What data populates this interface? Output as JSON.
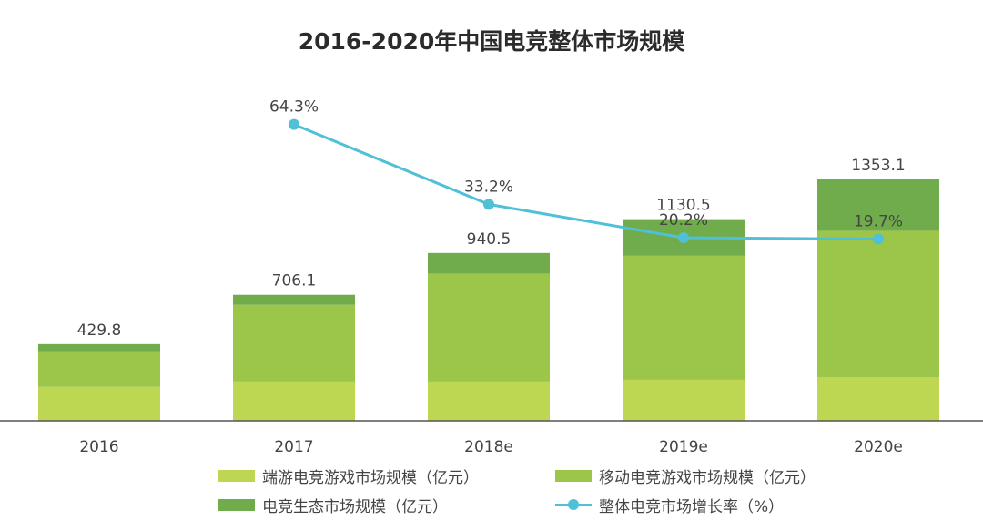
{
  "chart_data": {
    "type": "bar",
    "title": "2016-2020年中国电竞整体市场规模",
    "categories": [
      "2016",
      "2017",
      "2018e",
      "2019e",
      "2020e"
    ],
    "series": [
      {
        "name": "端游电竞游戏市场规模（亿元）",
        "kind": "stacked-bar",
        "color": "#bed752",
        "values": [
          190,
          220,
          220,
          230,
          245
        ]
      },
      {
        "name": "移动电竞游戏市场规模（亿元）",
        "kind": "stacked-bar",
        "color": "#9cc64a",
        "values": [
          199,
          430,
          605,
          695,
          820
        ]
      },
      {
        "name": "电竞生态市场规模（亿元）",
        "kind": "stacked-bar",
        "color": "#70ac4b",
        "values": [
          40.8,
          56.1,
          115.5,
          205.5,
          288.1
        ]
      },
      {
        "name": "整体电竞市场增长率（%）",
        "kind": "line",
        "color": "#4fc0d8",
        "values": [
          null,
          64.3,
          33.2,
          20.2,
          19.7
        ]
      }
    ],
    "totals": [
      429.8,
      706.1,
      940.5,
      1130.5,
      1353.1
    ],
    "total_labels": [
      "429.8",
      "706.1",
      "940.5",
      "1130.5",
      "1353.1"
    ],
    "growth_labels": [
      "",
      "64.3%",
      "33.2%",
      "20.2%",
      "19.7%"
    ],
    "xlabel": "",
    "ylabel": "",
    "ylim": [
      0,
      1440
    ],
    "growth_ylim": [
      0,
      100
    ],
    "grid": false,
    "legend_position": "bottom"
  }
}
